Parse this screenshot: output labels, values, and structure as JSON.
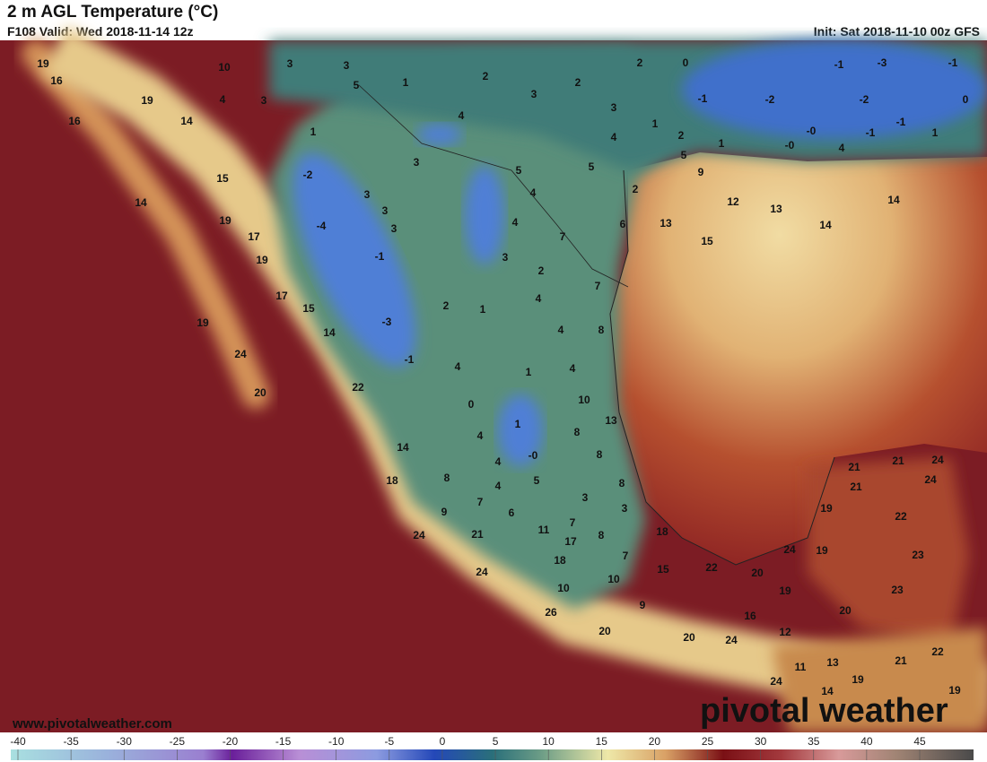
{
  "header": {
    "title": "2 m AGL Temperature (°C)",
    "valid": "F108 Valid: Wed 2018-11-14 12z",
    "init": "Init: Sat 2018-11-10 00z GFS"
  },
  "map": {
    "labels": [
      "19",
      "10",
      "3",
      "3",
      "2",
      "2",
      "0",
      "-1",
      "-3",
      "-1",
      "16",
      "5",
      "1",
      "2",
      "3",
      "19",
      "4",
      "3",
      "3",
      "-1",
      "-2",
      "-2",
      "0",
      "16",
      "14",
      "4",
      "1",
      "-1",
      "1",
      "4",
      "2",
      "-0",
      "-1",
      "1",
      "1",
      "-0",
      "4",
      "3",
      "5",
      "5",
      "5",
      "9",
      "-2",
      "15",
      "3",
      "4",
      "2",
      "12",
      "13",
      "14",
      "14",
      "3",
      "19",
      "-4",
      "3",
      "4",
      "6",
      "13",
      "14",
      "17",
      "7",
      "15",
      "-1",
      "19",
      "3",
      "2",
      "17",
      "7",
      "4",
      "15",
      "2",
      "1",
      "19",
      "-3",
      "8",
      "4",
      "14",
      "24",
      "-1",
      "4",
      "1",
      "4",
      "20",
      "22",
      "10",
      "0",
      "13",
      "1",
      "4",
      "8",
      "14",
      "-0",
      "8",
      "4",
      "21",
      "21",
      "24",
      "18",
      "8",
      "5",
      "8",
      "4",
      "21",
      "24",
      "9",
      "7",
      "3",
      "6",
      "3",
      "19",
      "22",
      "24",
      "21",
      "11",
      "7",
      "8",
      "17",
      "18",
      "24",
      "19",
      "18",
      "7",
      "23",
      "24",
      "15",
      "22",
      "20",
      "10",
      "10",
      "19",
      "23",
      "20",
      "9",
      "26",
      "16",
      "20",
      "20",
      "24",
      "12",
      "22",
      "11",
      "13",
      "21",
      "24",
      "19",
      "14",
      "19"
    ]
  },
  "footer": {
    "website": "www.pivotalweather.com",
    "logo": "pivotal weather"
  },
  "colorbar": {
    "ticks": [
      -40,
      -35,
      -30,
      -25,
      -20,
      -15,
      -10,
      -5,
      0,
      5,
      10,
      15,
      20,
      25,
      30,
      35,
      40,
      45
    ]
  }
}
